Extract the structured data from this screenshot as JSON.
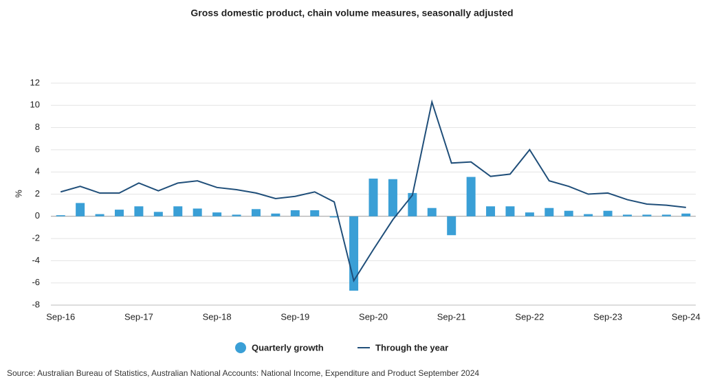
{
  "chart_data": {
    "type": "bar_line",
    "title": "Gross domestic product, chain volume measures, seasonally adjusted",
    "y_label": "%",
    "source": "Source: Australian Bureau of Statistics, Australian National Accounts: National Income, Expenditure and Product September 2024",
    "categories": [
      "Sep-16",
      null,
      null,
      null,
      "Sep-17",
      null,
      null,
      null,
      "Sep-18",
      null,
      null,
      null,
      "Sep-19",
      null,
      null,
      null,
      "Sep-20",
      null,
      null,
      null,
      "Sep-21",
      null,
      null,
      null,
      "Sep-22",
      null,
      null,
      null,
      "Sep-23",
      null,
      null,
      null,
      "Sep-24"
    ],
    "series": [
      {
        "name": "Quarterly growth",
        "type": "bar",
        "color": "#3a9fd6",
        "values": [
          0.1,
          1.2,
          0.2,
          0.6,
          0.9,
          0.4,
          0.9,
          0.7,
          0.35,
          0.15,
          0.65,
          0.25,
          0.55,
          0.55,
          -0.1,
          -6.7,
          3.4,
          3.35,
          2.1,
          0.75,
          -1.7,
          3.55,
          0.9,
          0.9,
          0.35,
          0.75,
          0.5,
          0.2,
          0.5,
          0.15,
          0.15,
          0.15,
          0.25
        ]
      },
      {
        "name": "Through the year",
        "type": "line",
        "color": "#1f4e79",
        "values": [
          2.2,
          2.7,
          2.1,
          2.1,
          3.0,
          2.3,
          3.0,
          3.2,
          2.6,
          2.4,
          2.1,
          1.6,
          1.8,
          2.2,
          1.3,
          -5.8,
          -3.0,
          -0.3,
          1.9,
          10.3,
          4.8,
          4.9,
          3.6,
          3.8,
          6.0,
          3.2,
          2.7,
          2.0,
          2.1,
          1.5,
          1.1,
          1.0,
          0.8
        ]
      }
    ],
    "ylim": [
      -8,
      12
    ],
    "yticks": [
      -8,
      -6,
      -4,
      -2,
      0,
      2,
      4,
      6,
      8,
      10,
      12
    ],
    "grid": true
  }
}
